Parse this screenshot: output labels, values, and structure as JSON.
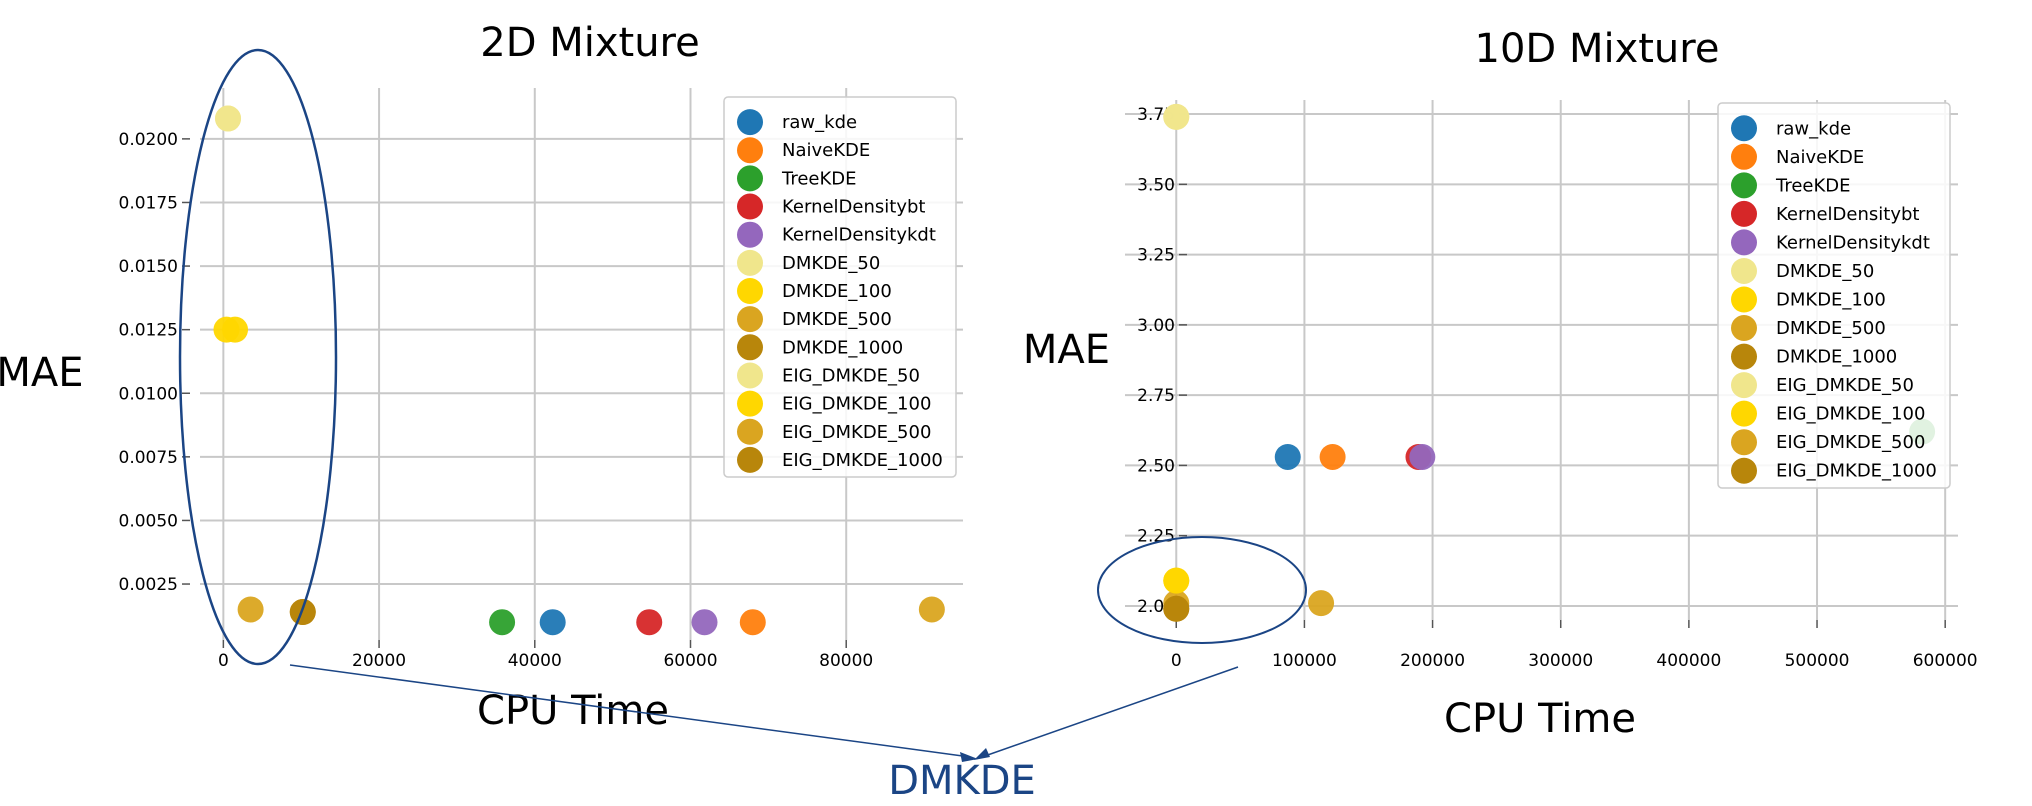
{
  "chart_data": [
    {
      "type": "scatter",
      "title": "2D Mixture",
      "xlabel": "CPU Time",
      "ylabel": "MAE",
      "xlim": [
        -3000,
        95000
      ],
      "ylim": [
        0.0003,
        0.022
      ],
      "xticks": [
        0,
        20000,
        40000,
        60000,
        80000
      ],
      "xtick_labels": [
        "0",
        "20000",
        "40000",
        "60000",
        "80000"
      ],
      "yticks": [
        0.0025,
        0.005,
        0.0075,
        0.01,
        0.0125,
        0.015,
        0.0175,
        0.02
      ],
      "ytick_labels": [
        "0.0025",
        "0.0050",
        "0.0075",
        "0.0100",
        "0.0125",
        "0.0150",
        "0.0175",
        "0.0200"
      ],
      "grid": true,
      "legend_position": "top-right",
      "series": [
        {
          "name": "raw_kde",
          "color": "#1f77b4",
          "points": [
            [
              42300,
              0.001
            ]
          ]
        },
        {
          "name": "NaiveKDE",
          "color": "#ff7f0e",
          "points": [
            [
              68000,
              0.001
            ]
          ]
        },
        {
          "name": "TreeKDE",
          "color": "#2ca02c",
          "points": [
            [
              35800,
              0.001
            ]
          ]
        },
        {
          "name": "KernelDensitybt",
          "color": "#d62728",
          "points": [
            [
              54700,
              0.001
            ]
          ]
        },
        {
          "name": "KernelDensitykdt",
          "color": "#9467bd",
          "points": [
            [
              61800,
              0.001
            ]
          ]
        },
        {
          "name": "DMKDE_50",
          "color": "#f0e68c",
          "points": [
            [
              600,
              0.0208
            ]
          ]
        },
        {
          "name": "DMKDE_100",
          "color": "#ffd700",
          "points": [
            [
              400,
              0.0125
            ]
          ]
        },
        {
          "name": "DMKDE_500",
          "color": "#daa520",
          "points": [
            [
              3500,
              0.0015
            ]
          ]
        },
        {
          "name": "DMKDE_1000",
          "color": "#b8860b",
          "points": [
            [
              10200,
              0.0014
            ]
          ]
        },
        {
          "name": "EIG_DMKDE_50",
          "color": "#f0e68c",
          "points": [
            [
              600,
              0.0208
            ]
          ]
        },
        {
          "name": "EIG_DMKDE_100",
          "color": "#ffd700",
          "points": [
            [
              1500,
              0.0125
            ]
          ]
        },
        {
          "name": "EIG_DMKDE_500",
          "color": "#daa520",
          "points": [
            [
              91000,
              0.0015
            ]
          ]
        },
        {
          "name": "EIG_DMKDE_1000",
          "color": "#b8860b",
          "points": [
            [
              10200,
              0.0014
            ]
          ]
        }
      ]
    },
    {
      "type": "scatter",
      "title": "10D Mixture",
      "xlabel": "CPU Time",
      "ylabel": "MAE",
      "xlim": [
        -40000,
        610000
      ],
      "ylim": [
        1.95,
        3.8
      ],
      "xticks": [
        0,
        100000,
        200000,
        300000,
        400000,
        500000,
        600000
      ],
      "xtick_labels": [
        "0",
        "100000",
        "200000",
        "300000",
        "400000",
        "500000",
        "600000"
      ],
      "yticks": [
        2.0,
        2.25,
        2.5,
        2.75,
        3.0,
        3.25,
        3.5,
        3.75
      ],
      "ytick_labels": [
        "2.00",
        "2.25",
        "2.50",
        "2.75",
        "3.00",
        "3.25",
        "3.50",
        "3.75"
      ],
      "grid": true,
      "legend_position": "top-right",
      "series": [
        {
          "name": "raw_kde",
          "color": "#1f77b4",
          "points": [
            [
              87000,
              2.53
            ]
          ]
        },
        {
          "name": "NaiveKDE",
          "color": "#ff7f0e",
          "points": [
            [
              122000,
              2.53
            ]
          ]
        },
        {
          "name": "TreeKDE",
          "color": "#2ca02c",
          "points": [
            [
              582000,
              2.62
            ]
          ]
        },
        {
          "name": "KernelDensitybt",
          "color": "#d62728",
          "points": [
            [
              189000,
              2.53
            ]
          ]
        },
        {
          "name": "KernelDensitykdt",
          "color": "#9467bd",
          "points": [
            [
              192000,
              2.53
            ]
          ]
        },
        {
          "name": "DMKDE_50",
          "color": "#f0e68c",
          "points": [
            [
              0,
              3.74
            ]
          ]
        },
        {
          "name": "DMKDE_100",
          "color": "#ffd700",
          "points": [
            [
              0,
              2.09
            ]
          ]
        },
        {
          "name": "DMKDE_500",
          "color": "#daa520",
          "points": [
            [
              0,
              2.01
            ]
          ]
        },
        {
          "name": "DMKDE_1000",
          "color": "#b8860b",
          "points": [
            [
              0,
              1.99
            ]
          ]
        },
        {
          "name": "EIG_DMKDE_50",
          "color": "#f0e68c",
          "points": [
            [
              0,
              3.74
            ]
          ]
        },
        {
          "name": "EIG_DMKDE_100",
          "color": "#ffd700",
          "points": [
            [
              0,
              2.09
            ]
          ]
        },
        {
          "name": "EIG_DMKDE_500",
          "color": "#daa520",
          "points": [
            [
              113000,
              2.01
            ]
          ]
        },
        {
          "name": "EIG_DMKDE_1000",
          "color": "#b8860b",
          "points": [
            [
              0,
              1.99
            ]
          ]
        }
      ]
    }
  ],
  "annotation": {
    "label": "DMKDE",
    "color": "#1b4585"
  }
}
